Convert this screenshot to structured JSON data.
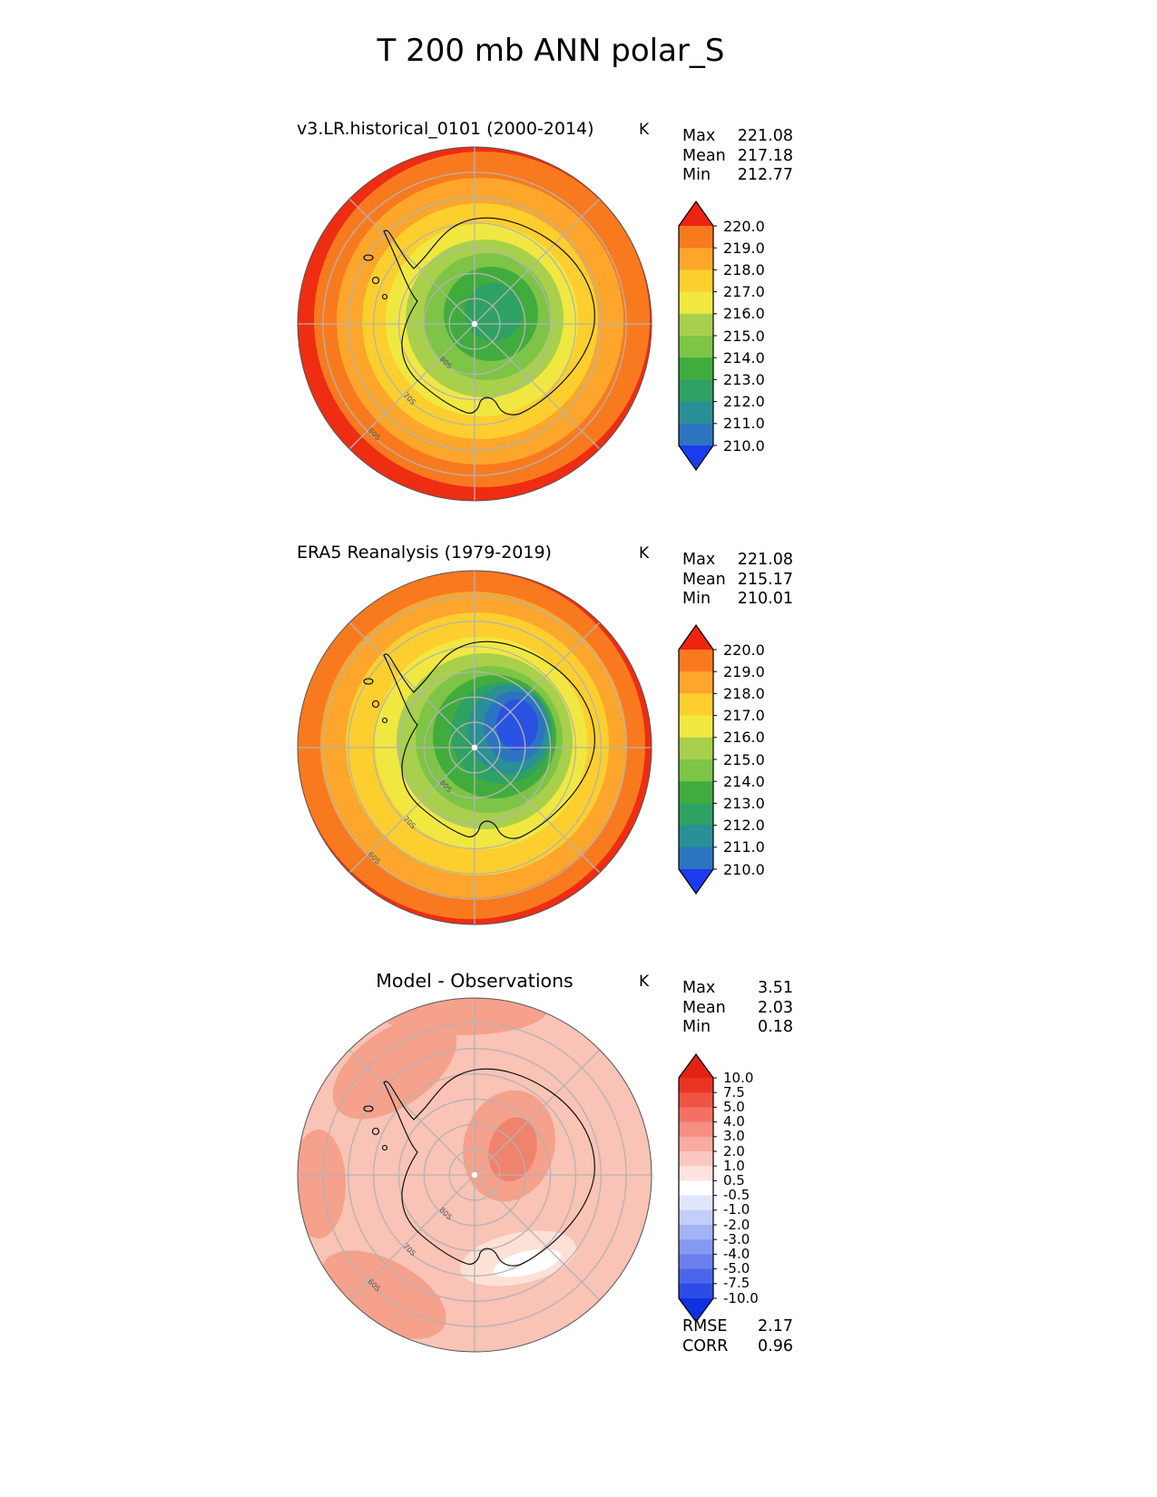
{
  "figure_title": "T 200 mb ANN polar_S",
  "graticule_labels": [
    "80S",
    "70S",
    "60S"
  ],
  "panels": [
    {
      "id": "model",
      "title": "v3.LR.historical_0101 (2000-2014)",
      "units": "K",
      "stats": [
        {
          "label": "Max",
          "value": "221.08"
        },
        {
          "label": "Mean",
          "value": "217.18"
        },
        {
          "label": "Min",
          "value": "212.77"
        }
      ],
      "colorbar": {
        "ticks": [
          "220.0",
          "219.0",
          "218.0",
          "217.0",
          "216.0",
          "215.0",
          "214.0",
          "213.0",
          "212.0",
          "211.0",
          "210.0"
        ],
        "band_colors": [
          "#f97a1e",
          "#fda62b",
          "#fccf2e",
          "#f0e840",
          "#a8d04c",
          "#7dc447",
          "#41ac3e",
          "#2ea163",
          "#2a8f96",
          "#2d74c0"
        ],
        "above_color": "#ee2411",
        "below_color": "#1b3cf0"
      }
    },
    {
      "id": "reference",
      "title": "ERA5 Reanalysis (1979-2019)",
      "units": "K",
      "stats": [
        {
          "label": "Max",
          "value": "221.08"
        },
        {
          "label": "Mean",
          "value": "215.17"
        },
        {
          "label": "Min",
          "value": "210.01"
        }
      ],
      "colorbar": {
        "ticks": [
          "220.0",
          "219.0",
          "218.0",
          "217.0",
          "216.0",
          "215.0",
          "214.0",
          "213.0",
          "212.0",
          "211.0",
          "210.0"
        ],
        "band_colors": [
          "#f97a1e",
          "#fda62b",
          "#fccf2e",
          "#f0e840",
          "#a8d04c",
          "#7dc447",
          "#41ac3e",
          "#2ea163",
          "#2a8f96",
          "#2d74c0"
        ],
        "above_color": "#ee2411",
        "below_color": "#1b3cf0"
      }
    },
    {
      "id": "difference",
      "title": "Model - Observations",
      "units": "K",
      "stats": [
        {
          "label": "Max",
          "value": "3.51"
        },
        {
          "label": "Mean",
          "value": "2.03"
        },
        {
          "label": "Min",
          "value": "0.18"
        }
      ],
      "metrics": [
        {
          "label": "RMSE",
          "value": "2.17"
        },
        {
          "label": "CORR",
          "value": "0.96"
        }
      ],
      "colorbar": {
        "ticks": [
          "10.0",
          "7.5",
          "5.0",
          "4.0",
          "3.0",
          "2.0",
          "1.0",
          "0.5",
          "-0.5",
          "-1.0",
          "-2.0",
          "-3.0",
          "-4.0",
          "-5.0",
          "-7.5",
          "-10.0"
        ],
        "band_colors": [
          "#ea3423",
          "#ef5443",
          "#f37163",
          "#f68e82",
          "#f9aba0",
          "#fbc7bf",
          "#fde3de",
          "#ffffff",
          "#e1e6fc",
          "#c3cdf9",
          "#a5b3f6",
          "#879af2",
          "#6980ee",
          "#4a66ea",
          "#2c4ce6"
        ],
        "above_color": "#e42211",
        "below_color": "#0e31e2"
      }
    }
  ],
  "chart_data": {
    "type": "heatmap",
    "subtype": "polar_stereographic_filled_contour_maps",
    "title": "T 200 mb ANN polar_S",
    "variable": "T",
    "pressure_level_mb": 200,
    "season": "ANN",
    "region": "polar_S (Southern Hemisphere polar cap, Antarctica centered)",
    "units": "K",
    "panels": [
      {
        "name": "v3.LR.historical_0101 (2000-2014)",
        "role": "model",
        "stats": {
          "max": 221.08,
          "mean": 217.18,
          "min": 212.77
        },
        "contour_levels_K": [
          210,
          211,
          212,
          213,
          214,
          215,
          216,
          217,
          218,
          219,
          220
        ],
        "pattern": "Temperature increases radially outward from ~213 K (green) over the Antarctic interior to 220+ K (red) at the map edge, with the warmest rim along the left and bottom edges."
      },
      {
        "name": "ERA5 Reanalysis (1979-2019)",
        "role": "observations",
        "stats": {
          "max": 221.08,
          "mean": 215.17,
          "min": 210.01
        },
        "contour_levels_K": [
          210,
          211,
          212,
          213,
          214,
          215,
          216,
          217,
          218,
          219,
          220
        ],
        "pattern": "Colder polar interior than the model: closed blue minimum (~210 K) slightly offset from the pole, rising through green/yellow bands to ~220 K orange at the edge with small red patches on the lower-right rim."
      },
      {
        "name": "Model - Observations",
        "role": "difference",
        "stats": {
          "max": 3.51,
          "mean": 2.03,
          "min": 0.18,
          "rmse": 2.17,
          "corr": 0.96
        },
        "contour_levels_K": [
          -10,
          -7.5,
          -5,
          -4,
          -3,
          -2,
          -1,
          -0.5,
          0.5,
          1,
          2,
          3,
          4,
          5,
          7.5,
          10
        ],
        "pattern": "Model warmer than ERA5 everywhere (+0.2 to +3.5 K): mostly +1 to +2 K (light pink), +2 to +4 K near the pole and in the upper-left sector, and a near-zero (white) patch southeast of the pole."
      }
    ],
    "legend_position": "right of each panel, vertical colorbar with extend arrows",
    "grid": "polar graticule: latitude circles every 5 degrees, meridians every 45 degrees"
  }
}
